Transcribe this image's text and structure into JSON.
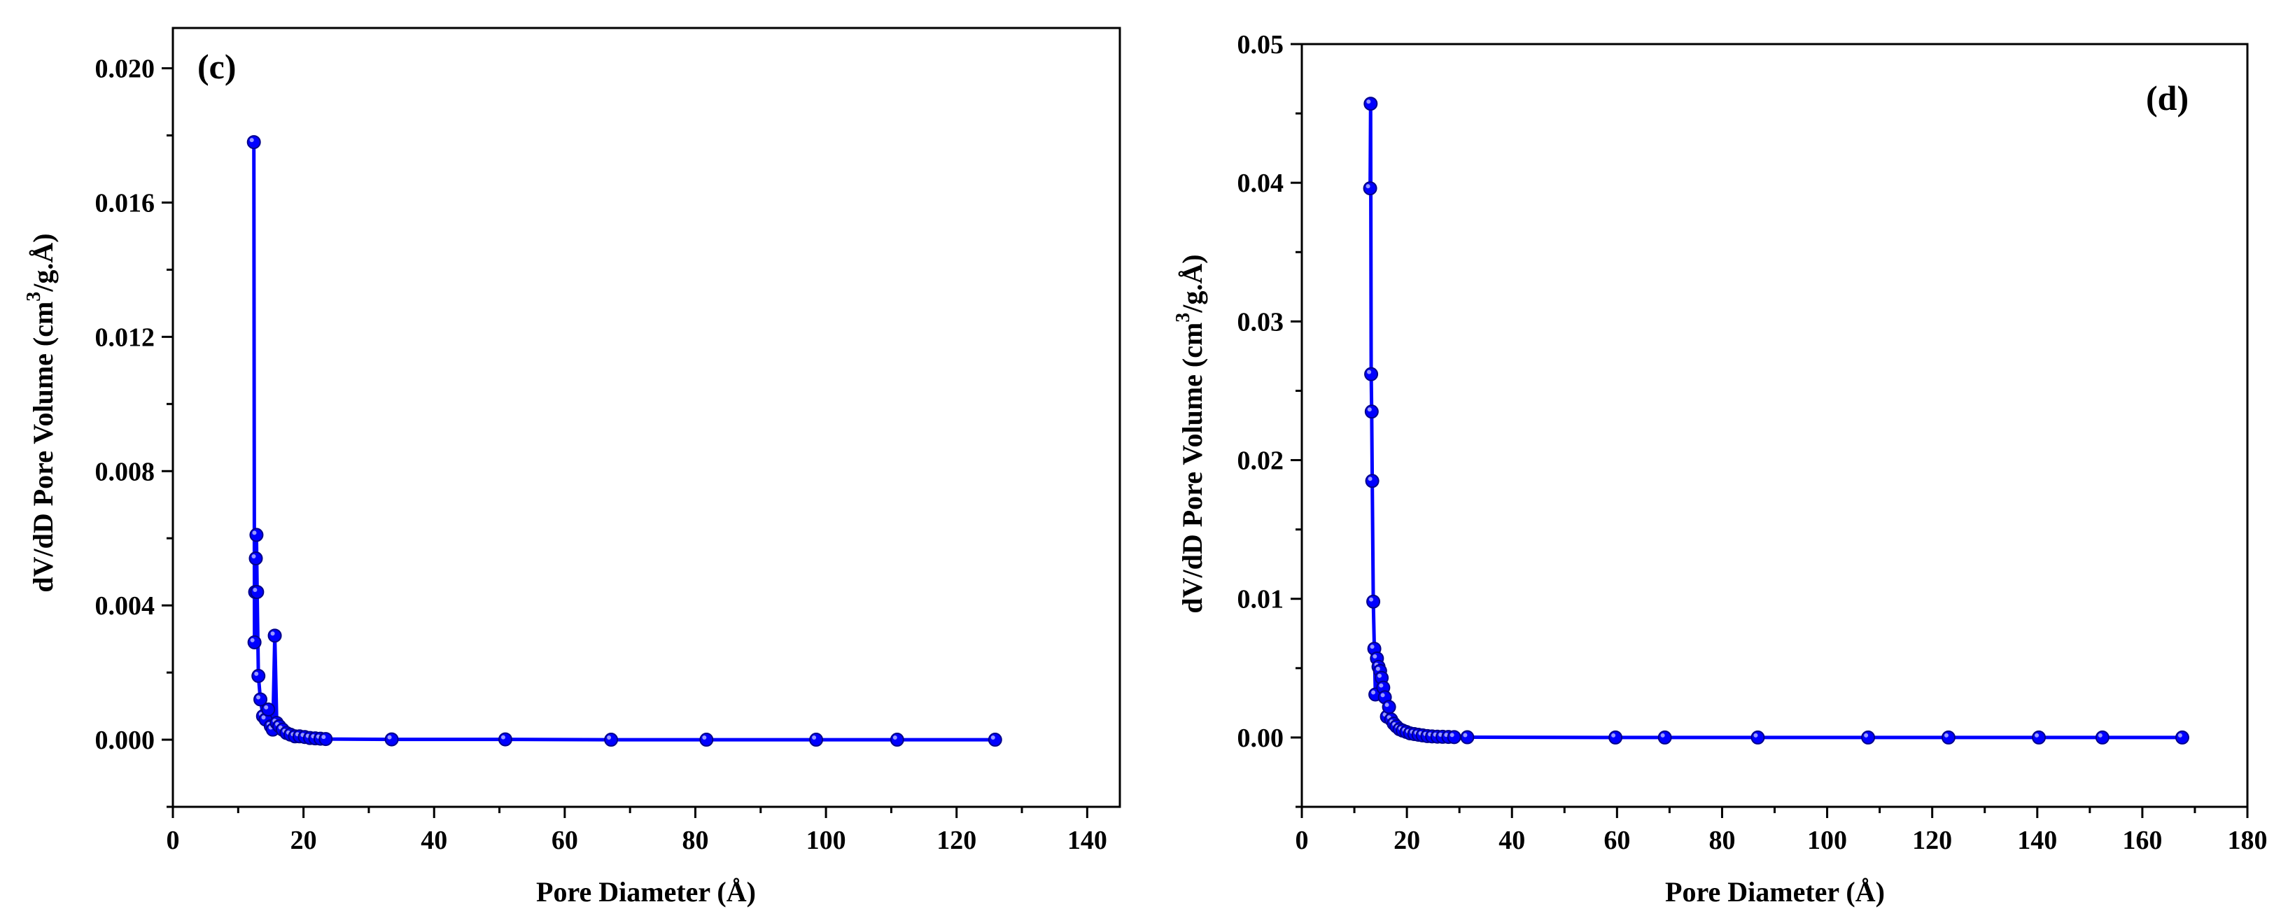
{
  "series_color": "#0000ff",
  "chart_data": [
    {
      "type": "line",
      "marker": "circle",
      "panel_label": "(c)",
      "xlabel": "Pore Diameter (Å)",
      "ylabel": "dV/dD Pore Volume (cm3/g.Å)",
      "ylabel_parts": {
        "before": "dV/dD Pore Volume (cm",
        "sup": "3",
        "after": "/g.Å)"
      },
      "xlim": [
        0,
        145
      ],
      "ylim": [
        -0.002,
        0.0212
      ],
      "xticks": [
        0,
        20,
        40,
        60,
        80,
        100,
        120,
        140
      ],
      "xtick_labels": [
        "0",
        "20",
        "40",
        "60",
        "80",
        "100",
        "120",
        "140"
      ],
      "yticks": [
        0.0,
        0.004,
        0.008,
        0.012,
        0.016,
        0.02
      ],
      "ytick_labels": [
        "0.000",
        "0.004",
        "0.008",
        "0.012",
        "0.016",
        "0.020"
      ],
      "x": [
        12.4,
        12.5,
        12.6,
        12.7,
        12.8,
        12.9,
        13.1,
        13.4,
        13.8,
        14.2,
        14.6,
        15.0,
        15.3,
        15.6,
        15.9,
        16.3,
        16.8,
        17.4,
        18.0,
        18.7,
        19.4,
        20.2,
        21.0,
        21.8,
        22.6,
        23.4,
        33.5,
        50.9,
        67.1,
        81.7,
        98.5,
        110.9,
        125.9
      ],
      "y": [
        0.0178,
        0.0029,
        0.0044,
        0.0054,
        0.0061,
        0.0044,
        0.0019,
        0.0012,
        0.0007,
        0.0006,
        0.0009,
        0.0004,
        0.0003,
        0.0031,
        0.0005,
        0.0004,
        0.0003,
        0.0002,
        0.00015,
        0.0001,
        0.0001,
        8e-05,
        5e-05,
        4e-05,
        3e-05,
        2e-05,
        1e-05,
        1e-05,
        0.0,
        0.0,
        0.0,
        0.0,
        0.0
      ]
    },
    {
      "type": "line",
      "marker": "circle",
      "panel_label": "(d)",
      "xlabel": "Pore Diameter (Å)",
      "ylabel": "dV/dD Pore Volume (cm3/g.Å)",
      "ylabel_parts": {
        "before": "dV/dD Pore Volume (cm",
        "sup": "3",
        "after": "/g.Å)"
      },
      "xlim": [
        0,
        180
      ],
      "ylim": [
        -0.005,
        0.05
      ],
      "xticks": [
        0,
        20,
        40,
        60,
        80,
        100,
        120,
        140,
        160,
        180
      ],
      "xtick_labels": [
        "0",
        "20",
        "40",
        "60",
        "80",
        "100",
        "120",
        "140",
        "160",
        "180"
      ],
      "yticks": [
        0.0,
        0.01,
        0.02,
        0.03,
        0.04,
        0.05
      ],
      "ytick_labels": [
        "0.00",
        "0.01",
        "0.02",
        "0.03",
        "0.04",
        "0.05"
      ],
      "x": [
        13.0,
        13.1,
        13.2,
        13.3,
        13.4,
        13.6,
        13.8,
        14.0,
        14.3,
        14.6,
        14.9,
        15.2,
        15.5,
        15.8,
        16.2,
        16.6,
        17.0,
        17.5,
        18.0,
        18.6,
        19.2,
        19.9,
        20.6,
        21.4,
        22.2,
        23.0,
        23.9,
        24.8,
        25.8,
        26.8,
        27.9,
        29.0,
        31.5,
        59.7,
        69.1,
        86.8,
        107.8,
        123.1,
        140.3,
        152.4,
        167.6
      ],
      "y": [
        0.0396,
        0.0457,
        0.0262,
        0.0235,
        0.0185,
        0.0098,
        0.0064,
        0.0031,
        0.0057,
        0.0051,
        0.0048,
        0.0043,
        0.0036,
        0.0029,
        0.0015,
        0.0022,
        0.0013,
        0.001,
        0.0008,
        0.0006,
        0.0005,
        0.0004,
        0.0003,
        0.00025,
        0.0002,
        0.00015,
        0.0001,
        8e-05,
        6e-05,
        5e-05,
        4e-05,
        3e-05,
        2e-05,
        0.0,
        0.0,
        0.0,
        0.0,
        0.0,
        0.0,
        0.0,
        0.0
      ]
    }
  ]
}
